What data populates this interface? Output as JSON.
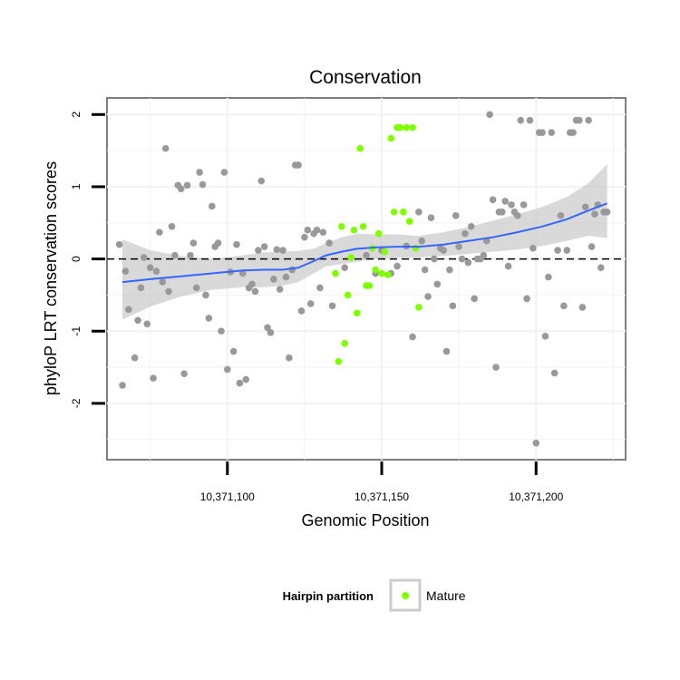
{
  "chart_data": {
    "type": "scatter",
    "title": "Conservation",
    "xlabel": "Genomic Position",
    "ylabel": "phyloP LRT conservation scores",
    "x_ticks": [
      {
        "value": 10371100,
        "label": "10,371,100"
      },
      {
        "value": 10371150,
        "label": "10,371,150"
      },
      {
        "value": 10371200,
        "label": "10,371,200"
      }
    ],
    "y_ticks": [
      {
        "value": -2,
        "label": "-2"
      },
      {
        "value": -1,
        "label": "-1"
      },
      {
        "value": 0,
        "label": "0"
      },
      {
        "value": 1,
        "label": "1"
      },
      {
        "value": 2,
        "label": "2"
      }
    ],
    "xlim": [
      10371061,
      10371229
    ],
    "ylim": [
      -2.78,
      2.23
    ],
    "grid": true,
    "reference_line": {
      "y": 0,
      "style": "dashed"
    },
    "legend": {
      "title": "Hairpin partition",
      "position": "bottom",
      "entries": [
        {
          "label": "Mature",
          "color": "#7FFF00"
        }
      ]
    },
    "colors": {
      "other": "#999999",
      "mature": "#7FFF00",
      "smooth": "#3366FF",
      "ribbon": "#BFBFBF"
    },
    "points_other": [
      [
        10371065,
        0.2
      ],
      [
        10371066,
        -1.75
      ],
      [
        10371067,
        -0.17
      ],
      [
        10371068,
        -0.7
      ],
      [
        10371070,
        -1.37
      ],
      [
        10371071,
        -0.85
      ],
      [
        10371072,
        -0.4
      ],
      [
        10371073,
        0.02
      ],
      [
        10371074,
        -0.9
      ],
      [
        10371075,
        -0.12
      ],
      [
        10371076,
        -1.65
      ],
      [
        10371077,
        -0.17
      ],
      [
        10371078,
        0.37
      ],
      [
        10371079,
        -0.32
      ],
      [
        10371080,
        1.53
      ],
      [
        10371081,
        -0.45
      ],
      [
        10371082,
        0.45
      ],
      [
        10371083,
        0.05
      ],
      [
        10371084,
        1.02
      ],
      [
        10371085,
        0.97
      ],
      [
        10371086,
        -1.59
      ],
      [
        10371087,
        1.02
      ],
      [
        10371088,
        0.05
      ],
      [
        10371089,
        0.22
      ],
      [
        10371090,
        -0.4
      ],
      [
        10371091,
        1.2
      ],
      [
        10371092,
        1.03
      ],
      [
        10371093,
        -0.5
      ],
      [
        10371094,
        -0.82
      ],
      [
        10371095,
        0.73
      ],
      [
        10371096,
        0.17
      ],
      [
        10371097,
        0.22
      ],
      [
        10371098,
        -1.0
      ],
      [
        10371099,
        1.2
      ],
      [
        10371100,
        -1.53
      ],
      [
        10371101,
        -0.18
      ],
      [
        10371102,
        -1.28
      ],
      [
        10371103,
        0.2
      ],
      [
        10371104,
        -1.72
      ],
      [
        10371105,
        -0.2
      ],
      [
        10371106,
        -1.67
      ],
      [
        10371107,
        -0.4
      ],
      [
        10371108,
        -0.35
      ],
      [
        10371109,
        -0.45
      ],
      [
        10371110,
        0.12
      ],
      [
        10371111,
        1.08
      ],
      [
        10371112,
        0.17
      ],
      [
        10371113,
        -0.95
      ],
      [
        10371114,
        -1.02
      ],
      [
        10371115,
        -0.28
      ],
      [
        10371116,
        0.13
      ],
      [
        10371117,
        -0.42
      ],
      [
        10371118,
        0.12
      ],
      [
        10371119,
        -0.25
      ],
      [
        10371120,
        -1.37
      ],
      [
        10371121,
        -0.15
      ],
      [
        10371122,
        1.3
      ],
      [
        10371123,
        1.3
      ],
      [
        10371124,
        -0.72
      ],
      [
        10371125,
        0.3
      ],
      [
        10371126,
        0.4
      ],
      [
        10371127,
        -0.62
      ],
      [
        10371128,
        0.35
      ],
      [
        10371129,
        0.4
      ],
      [
        10371130,
        -0.4
      ],
      [
        10371131,
        0.37
      ],
      [
        10371133,
        0.22
      ],
      [
        10371134,
        -0.65
      ],
      [
        10371138,
        -0.12
      ],
      [
        10371145,
        0.05
      ],
      [
        10371148,
        -0.2
      ],
      [
        10371150,
        0.12
      ],
      [
        10371153,
        -0.2
      ],
      [
        10371155,
        -0.1
      ],
      [
        10371158,
        0.18
      ],
      [
        10371160,
        -1.08
      ],
      [
        10371161,
        0.15
      ],
      [
        10371162,
        0.65
      ],
      [
        10371163,
        0.25
      ],
      [
        10371164,
        -0.15
      ],
      [
        10371165,
        -0.52
      ],
      [
        10371166,
        0.57
      ],
      [
        10371167,
        0.0
      ],
      [
        10371168,
        -0.35
      ],
      [
        10371169,
        0.15
      ],
      [
        10371170,
        0.12
      ],
      [
        10371171,
        -1.28
      ],
      [
        10371172,
        -0.15
      ],
      [
        10371173,
        -0.65
      ],
      [
        10371174,
        0.6
      ],
      [
        10371175,
        0.17
      ],
      [
        10371176,
        0.0
      ],
      [
        10371177,
        0.35
      ],
      [
        10371178,
        -0.05
      ],
      [
        10371179,
        0.45
      ],
      [
        10371180,
        -0.55
      ],
      [
        10371181,
        0.0
      ],
      [
        10371182,
        0.0
      ],
      [
        10371183,
        0.05
      ],
      [
        10371184,
        0.25
      ],
      [
        10371185,
        2.0
      ],
      [
        10371186,
        0.82
      ],
      [
        10371187,
        -1.5
      ],
      [
        10371188,
        0.65
      ],
      [
        10371189,
        0.65
      ],
      [
        10371190,
        0.8
      ],
      [
        10371191,
        -0.1
      ],
      [
        10371192,
        0.75
      ],
      [
        10371193,
        0.65
      ],
      [
        10371194,
        0.6
      ],
      [
        10371195,
        1.92
      ],
      [
        10371196,
        0.75
      ],
      [
        10371197,
        -0.55
      ],
      [
        10371198,
        1.92
      ],
      [
        10371199,
        0.15
      ],
      [
        10371200,
        -2.55
      ],
      [
        10371201,
        1.75
      ],
      [
        10371202,
        1.75
      ],
      [
        10371203,
        -1.07
      ],
      [
        10371204,
        -0.25
      ],
      [
        10371205,
        1.75
      ],
      [
        10371206,
        -1.58
      ],
      [
        10371207,
        0.12
      ],
      [
        10371208,
        0.6
      ],
      [
        10371209,
        -0.65
      ],
      [
        10371210,
        0.12
      ],
      [
        10371211,
        1.75
      ],
      [
        10371212,
        1.75
      ],
      [
        10371213,
        1.92
      ],
      [
        10371214,
        1.92
      ],
      [
        10371215,
        -0.67
      ],
      [
        10371216,
        0.72
      ],
      [
        10371217,
        1.92
      ],
      [
        10371218,
        0.17
      ],
      [
        10371219,
        0.62
      ],
      [
        10371220,
        0.75
      ],
      [
        10371221,
        -0.12
      ],
      [
        10371222,
        0.65
      ],
      [
        10371223,
        0.65
      ]
    ],
    "points_mature": [
      [
        10371135,
        -0.2
      ],
      [
        10371136,
        -1.42
      ],
      [
        10371137,
        0.45
      ],
      [
        10371138,
        -1.17
      ],
      [
        10371139,
        -0.5
      ],
      [
        10371140,
        0.02
      ],
      [
        10371141,
        0.4
      ],
      [
        10371142,
        -0.75
      ],
      [
        10371143,
        1.53
      ],
      [
        10371144,
        0.45
      ],
      [
        10371145,
        -0.37
      ],
      [
        10371146,
        -0.37
      ],
      [
        10371147,
        0.15
      ],
      [
        10371148,
        -0.15
      ],
      [
        10371149,
        0.35
      ],
      [
        10371150,
        -0.2
      ],
      [
        10371151,
        0.1
      ],
      [
        10371152,
        -0.22
      ],
      [
        10371153,
        1.67
      ],
      [
        10371154,
        0.65
      ],
      [
        10371155,
        1.82
      ],
      [
        10371156,
        1.82
      ],
      [
        10371157,
        0.65
      ],
      [
        10371158,
        1.82
      ],
      [
        10371159,
        0.52
      ],
      [
        10371160,
        1.82
      ],
      [
        10371161,
        0.15
      ],
      [
        10371162,
        -0.67
      ]
    ],
    "smooth_line": [
      [
        10371066,
        -0.32
      ],
      [
        10371075,
        -0.28
      ],
      [
        10371085,
        -0.24
      ],
      [
        10371095,
        -0.2
      ],
      [
        10371105,
        -0.16
      ],
      [
        10371112,
        -0.15
      ],
      [
        10371118,
        -0.15
      ],
      [
        10371123,
        -0.12
      ],
      [
        10371128,
        -0.03
      ],
      [
        10371132,
        0.05
      ],
      [
        10371137,
        0.1
      ],
      [
        10371142,
        0.14
      ],
      [
        10371148,
        0.16
      ],
      [
        10371155,
        0.17
      ],
      [
        10371162,
        0.17
      ],
      [
        10371170,
        0.2
      ],
      [
        10371178,
        0.25
      ],
      [
        10371186,
        0.3
      ],
      [
        10371194,
        0.37
      ],
      [
        10371202,
        0.45
      ],
      [
        10371210,
        0.55
      ],
      [
        10371217,
        0.67
      ],
      [
        10371223,
        0.77
      ]
    ],
    "ribbon_upper": [
      [
        10371066,
        0.27
      ],
      [
        10371075,
        0.12
      ],
      [
        10371085,
        0.04
      ],
      [
        10371095,
        0.0
      ],
      [
        10371105,
        0.05
      ],
      [
        10371112,
        0.09
      ],
      [
        10371118,
        0.1
      ],
      [
        10371123,
        0.11
      ],
      [
        10371128,
        0.14
      ],
      [
        10371132,
        0.22
      ],
      [
        10371137,
        0.3
      ],
      [
        10371142,
        0.35
      ],
      [
        10371148,
        0.34
      ],
      [
        10371155,
        0.34
      ],
      [
        10371162,
        0.32
      ],
      [
        10371170,
        0.37
      ],
      [
        10371178,
        0.44
      ],
      [
        10371186,
        0.53
      ],
      [
        10371194,
        0.62
      ],
      [
        10371202,
        0.72
      ],
      [
        10371210,
        0.86
      ],
      [
        10371217,
        1.05
      ],
      [
        10371223,
        1.31
      ]
    ],
    "ribbon_lower": [
      [
        10371066,
        -0.84
      ],
      [
        10371075,
        -0.66
      ],
      [
        10371085,
        -0.52
      ],
      [
        10371095,
        -0.43
      ],
      [
        10371105,
        -0.39
      ],
      [
        10371112,
        -0.39
      ],
      [
        10371118,
        -0.37
      ],
      [
        10371123,
        -0.32
      ],
      [
        10371128,
        -0.2
      ],
      [
        10371132,
        -0.1
      ],
      [
        10371137,
        -0.07
      ],
      [
        10371142,
        -0.04
      ],
      [
        10371148,
        0.0
      ],
      [
        10371155,
        0.02
      ],
      [
        10371162,
        0.02
      ],
      [
        10371170,
        0.04
      ],
      [
        10371178,
        0.07
      ],
      [
        10371186,
        0.1
      ],
      [
        10371194,
        0.13
      ],
      [
        10371202,
        0.18
      ],
      [
        10371210,
        0.25
      ],
      [
        10371217,
        0.32
      ],
      [
        10371223,
        0.29
      ]
    ]
  }
}
